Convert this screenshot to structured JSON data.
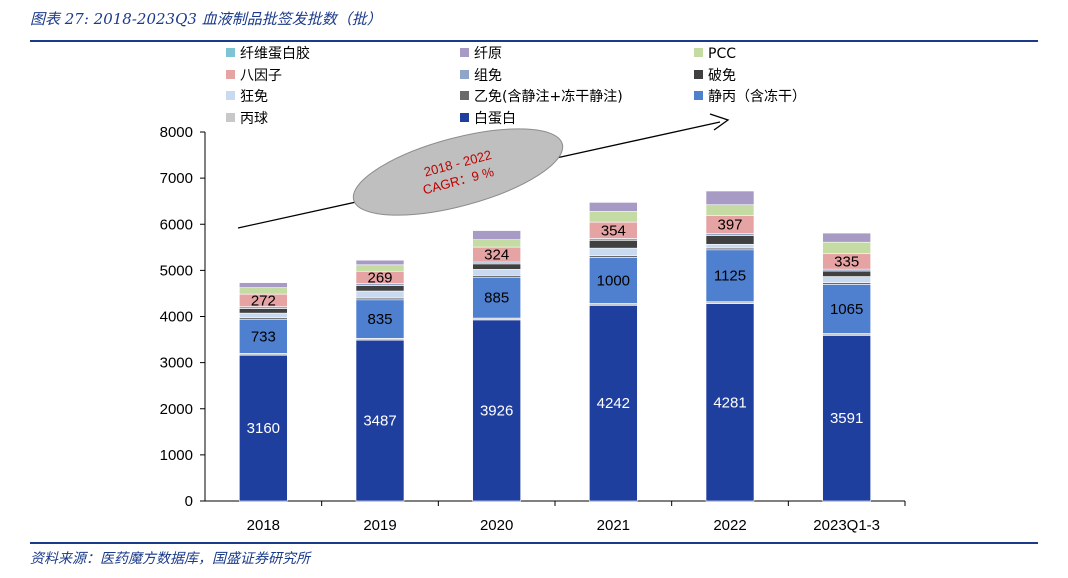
{
  "header": {
    "title": "图表 27: 2018-2023Q3 血液制品批签发批数（批）"
  },
  "footer": {
    "source": "资料来源：医药魔方数据库，国盛证券研究所"
  },
  "chart_data": {
    "type": "bar",
    "stacked": true,
    "categories": [
      "2018",
      "2019",
      "2020",
      "2021",
      "2022",
      "2023Q1-3"
    ],
    "ylim": [
      0,
      8000
    ],
    "yticks": [
      0,
      1000,
      2000,
      3000,
      4000,
      5000,
      6000,
      7000,
      8000
    ],
    "series": [
      {
        "name": "白蛋白",
        "color": "#1f3f9e",
        "values": [
          3160,
          3487,
          3926,
          4242,
          4281,
          3591
        ],
        "labeled": true,
        "label_color": "white"
      },
      {
        "name": "丙球",
        "color": "#c8c8c8",
        "values": [
          40,
          40,
          40,
          40,
          40,
          40
        ]
      },
      {
        "name": "静丙（含冻干）",
        "color": "#4f7fcf",
        "values": [
          733,
          835,
          885,
          1000,
          1125,
          1065
        ],
        "labeled": true,
        "label_color": "black"
      },
      {
        "name": "乙免(含静注+冻干静注)",
        "color": "#6a6a6a",
        "values": [
          40,
          40,
          40,
          40,
          40,
          40
        ]
      },
      {
        "name": "狂免",
        "color": "#c9d9f0",
        "values": [
          100,
          150,
          130,
          160,
          80,
          130
        ]
      },
      {
        "name": "破免",
        "color": "#404040",
        "values": [
          100,
          120,
          120,
          170,
          190,
          120
        ]
      },
      {
        "name": "组免",
        "color": "#8fa6c8",
        "values": [
          40,
          40,
          40,
          40,
          40,
          40
        ]
      },
      {
        "name": "八因子",
        "color": "#e6a3a3",
        "values": [
          272,
          269,
          324,
          354,
          397,
          335
        ],
        "labeled": true,
        "label_color": "black"
      },
      {
        "name": "PCC",
        "color": "#c4dca4",
        "values": [
          140,
          140,
          160,
          230,
          230,
          250
        ]
      },
      {
        "name": "纤原",
        "color": "#a79ac4",
        "values": [
          110,
          100,
          200,
          200,
          300,
          200
        ]
      },
      {
        "name": "纤维蛋白胶",
        "color": "#7fc4d4",
        "values": [
          10,
          10,
          10,
          10,
          10,
          10
        ]
      }
    ],
    "legend_order": [
      "纤维蛋白胶",
      "纤原",
      "PCC",
      "八因子",
      "组免",
      "破免",
      "狂免",
      "乙免(含静注+冻干静注)",
      "静丙（含冻干）",
      "丙球",
      "白蛋白"
    ],
    "annotation": {
      "line1": "2018 - 2022",
      "line2": "CAGR：9 %"
    }
  }
}
